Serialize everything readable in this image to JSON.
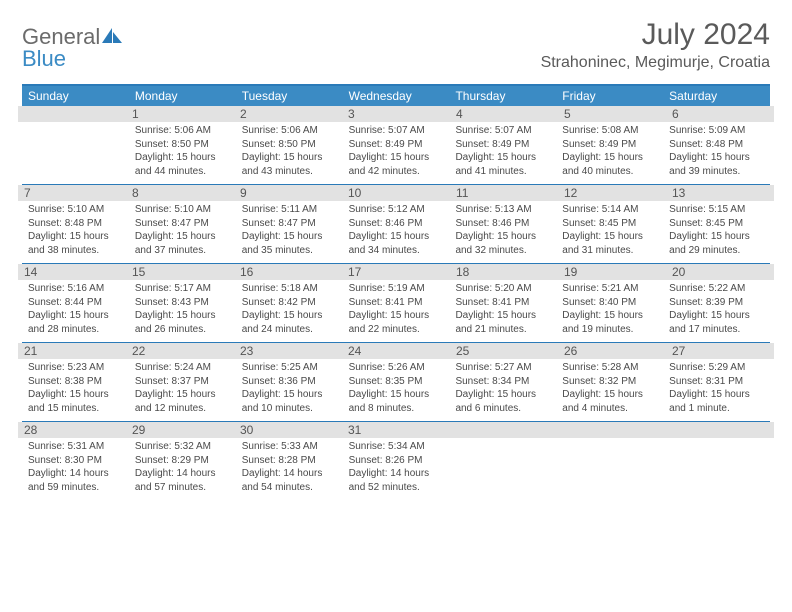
{
  "logo": {
    "general": "General",
    "blue": "Blue"
  },
  "title": "July 2024",
  "location": "Strahoninec, Megimurje, Croatia",
  "colors": {
    "header_bg": "#3b8bc4",
    "header_text": "#ffffff",
    "band_bg": "#e2e2e2",
    "rule": "#2a7ab8",
    "text": "#4a4a4a",
    "logo_gray": "#6b6b6b",
    "logo_blue": "#3b8bc4"
  },
  "day_headers": [
    "Sunday",
    "Monday",
    "Tuesday",
    "Wednesday",
    "Thursday",
    "Friday",
    "Saturday"
  ],
  "weeks": [
    [
      {
        "n": "",
        "sunrise": "",
        "sunset": "",
        "daylight": ""
      },
      {
        "n": "1",
        "sunrise": "5:06 AM",
        "sunset": "8:50 PM",
        "daylight": "15 hours and 44 minutes."
      },
      {
        "n": "2",
        "sunrise": "5:06 AM",
        "sunset": "8:50 PM",
        "daylight": "15 hours and 43 minutes."
      },
      {
        "n": "3",
        "sunrise": "5:07 AM",
        "sunset": "8:49 PM",
        "daylight": "15 hours and 42 minutes."
      },
      {
        "n": "4",
        "sunrise": "5:07 AM",
        "sunset": "8:49 PM",
        "daylight": "15 hours and 41 minutes."
      },
      {
        "n": "5",
        "sunrise": "5:08 AM",
        "sunset": "8:49 PM",
        "daylight": "15 hours and 40 minutes."
      },
      {
        "n": "6",
        "sunrise": "5:09 AM",
        "sunset": "8:48 PM",
        "daylight": "15 hours and 39 minutes."
      }
    ],
    [
      {
        "n": "7",
        "sunrise": "5:10 AM",
        "sunset": "8:48 PM",
        "daylight": "15 hours and 38 minutes."
      },
      {
        "n": "8",
        "sunrise": "5:10 AM",
        "sunset": "8:47 PM",
        "daylight": "15 hours and 37 minutes."
      },
      {
        "n": "9",
        "sunrise": "5:11 AM",
        "sunset": "8:47 PM",
        "daylight": "15 hours and 35 minutes."
      },
      {
        "n": "10",
        "sunrise": "5:12 AM",
        "sunset": "8:46 PM",
        "daylight": "15 hours and 34 minutes."
      },
      {
        "n": "11",
        "sunrise": "5:13 AM",
        "sunset": "8:46 PM",
        "daylight": "15 hours and 32 minutes."
      },
      {
        "n": "12",
        "sunrise": "5:14 AM",
        "sunset": "8:45 PM",
        "daylight": "15 hours and 31 minutes."
      },
      {
        "n": "13",
        "sunrise": "5:15 AM",
        "sunset": "8:45 PM",
        "daylight": "15 hours and 29 minutes."
      }
    ],
    [
      {
        "n": "14",
        "sunrise": "5:16 AM",
        "sunset": "8:44 PM",
        "daylight": "15 hours and 28 minutes."
      },
      {
        "n": "15",
        "sunrise": "5:17 AM",
        "sunset": "8:43 PM",
        "daylight": "15 hours and 26 minutes."
      },
      {
        "n": "16",
        "sunrise": "5:18 AM",
        "sunset": "8:42 PM",
        "daylight": "15 hours and 24 minutes."
      },
      {
        "n": "17",
        "sunrise": "5:19 AM",
        "sunset": "8:41 PM",
        "daylight": "15 hours and 22 minutes."
      },
      {
        "n": "18",
        "sunrise": "5:20 AM",
        "sunset": "8:41 PM",
        "daylight": "15 hours and 21 minutes."
      },
      {
        "n": "19",
        "sunrise": "5:21 AM",
        "sunset": "8:40 PM",
        "daylight": "15 hours and 19 minutes."
      },
      {
        "n": "20",
        "sunrise": "5:22 AM",
        "sunset": "8:39 PM",
        "daylight": "15 hours and 17 minutes."
      }
    ],
    [
      {
        "n": "21",
        "sunrise": "5:23 AM",
        "sunset": "8:38 PM",
        "daylight": "15 hours and 15 minutes."
      },
      {
        "n": "22",
        "sunrise": "5:24 AM",
        "sunset": "8:37 PM",
        "daylight": "15 hours and 12 minutes."
      },
      {
        "n": "23",
        "sunrise": "5:25 AM",
        "sunset": "8:36 PM",
        "daylight": "15 hours and 10 minutes."
      },
      {
        "n": "24",
        "sunrise": "5:26 AM",
        "sunset": "8:35 PM",
        "daylight": "15 hours and 8 minutes."
      },
      {
        "n": "25",
        "sunrise": "5:27 AM",
        "sunset": "8:34 PM",
        "daylight": "15 hours and 6 minutes."
      },
      {
        "n": "26",
        "sunrise": "5:28 AM",
        "sunset": "8:32 PM",
        "daylight": "15 hours and 4 minutes."
      },
      {
        "n": "27",
        "sunrise": "5:29 AM",
        "sunset": "8:31 PM",
        "daylight": "15 hours and 1 minute."
      }
    ],
    [
      {
        "n": "28",
        "sunrise": "5:31 AM",
        "sunset": "8:30 PM",
        "daylight": "14 hours and 59 minutes."
      },
      {
        "n": "29",
        "sunrise": "5:32 AM",
        "sunset": "8:29 PM",
        "daylight": "14 hours and 57 minutes."
      },
      {
        "n": "30",
        "sunrise": "5:33 AM",
        "sunset": "8:28 PM",
        "daylight": "14 hours and 54 minutes."
      },
      {
        "n": "31",
        "sunrise": "5:34 AM",
        "sunset": "8:26 PM",
        "daylight": "14 hours and 52 minutes."
      },
      {
        "n": "",
        "sunrise": "",
        "sunset": "",
        "daylight": ""
      },
      {
        "n": "",
        "sunrise": "",
        "sunset": "",
        "daylight": ""
      },
      {
        "n": "",
        "sunrise": "",
        "sunset": "",
        "daylight": ""
      }
    ]
  ],
  "labels": {
    "sunrise": "Sunrise: ",
    "sunset": "Sunset: ",
    "daylight": "Daylight: "
  }
}
